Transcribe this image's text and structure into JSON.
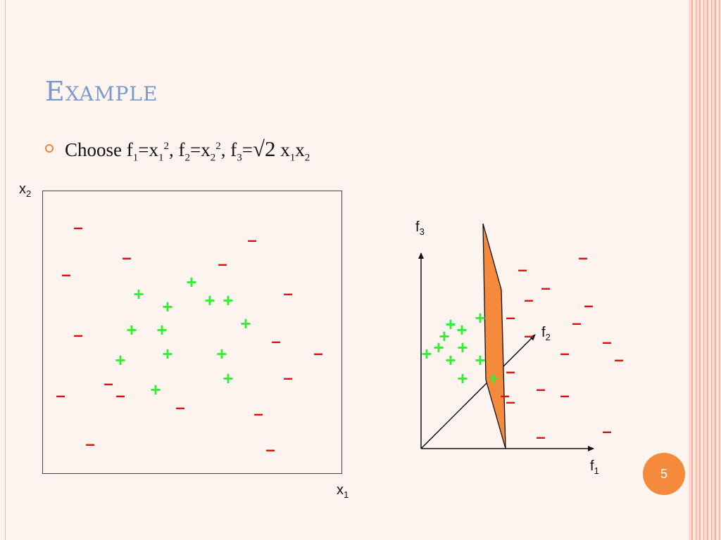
{
  "slide": {
    "title_initial": "E",
    "title_rest": "XAMPLE",
    "page_number": "5"
  },
  "bullet": {
    "t1": "Choose f",
    "s1": "1",
    "t2": "=x",
    "s2": "1",
    "p2": "2",
    "t3": ", f",
    "s3": "2",
    "t4": "=x",
    "s4": "2",
    "p4": "2",
    "t5": ", f",
    "s5": "3",
    "t6": "=",
    "sqrt2": "√2",
    "t7": " x",
    "s7": "1",
    "t8": "x",
    "s8": "2"
  },
  "left_plot": {
    "y_label": "x",
    "y_label_sub": "2",
    "x_label": "x",
    "x_label_sub": "1"
  },
  "right_plot": {
    "z_label": "f",
    "z_label_sub": "3",
    "y_label": "f",
    "y_label_sub": "2",
    "x_label": "f",
    "x_label_sub": "1"
  },
  "marks": {
    "positive": "+",
    "negative": "–"
  },
  "colors": {
    "title": "#7b9ac8",
    "positive": "#33ee33",
    "negative": "#dd1111",
    "plane_fill": "#f58a3c",
    "badge": "#f58a3c"
  }
}
